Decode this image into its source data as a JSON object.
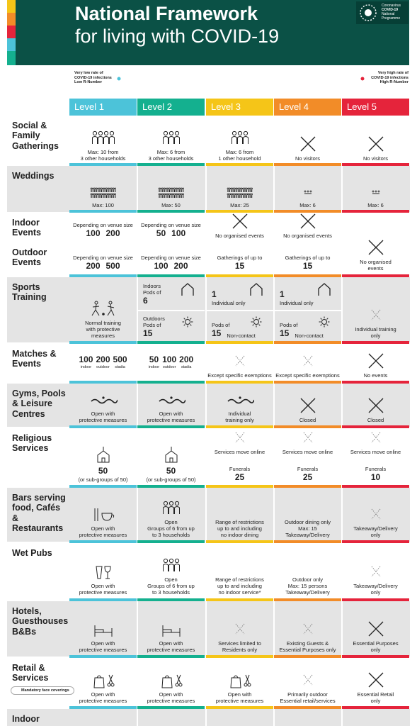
{
  "header": {
    "title": "National Framework",
    "subtitle": "for living with COVID-19",
    "logo": [
      "Coronavirus",
      "COVID-19",
      "National",
      "Programme"
    ]
  },
  "scale": {
    "low": [
      "Very low rate of",
      "COVID-19 infections",
      "Low R-Number"
    ],
    "high": [
      "Very high rate of",
      "COVID-19 infections",
      "High R-Number"
    ]
  },
  "levels": [
    "Level 1",
    "Level 2",
    "Level 3",
    "Level 4",
    "Level 5"
  ],
  "rows": [
    {
      "label": "Social & Family Gatherings",
      "cells": [
        [
          "Max: 10 from",
          "3 other households"
        ],
        [
          "Max: 6 from",
          "3 other households"
        ],
        [
          "Max: 6 from",
          "1 other household"
        ],
        [
          "No visitors"
        ],
        [
          "No visitors"
        ]
      ]
    },
    {
      "label": "Weddings",
      "cells": [
        [
          "Max: 100"
        ],
        [
          "Max: 50"
        ],
        [
          "Max: 25"
        ],
        [
          "Max: 6"
        ],
        [
          "Max: 6"
        ]
      ]
    },
    {
      "labels": [
        "Indoor Events",
        "Outdoor Events"
      ],
      "cells": [
        {
          "parts": [
            [
              "Depending on venue size",
              [
                "100",
                "200"
              ]
            ],
            [
              "Depending on venue size",
              [
                "200",
                "500"
              ]
            ]
          ]
        },
        {
          "parts": [
            [
              "Depending on venue size",
              [
                "50",
                "100"
              ]
            ],
            [
              "Depending on venue size",
              [
                "100",
                "200"
              ]
            ]
          ]
        },
        {
          "parts": [
            [
              "No organised events"
            ],
            [
              "Gatherings of up to",
              "15"
            ]
          ]
        },
        {
          "parts": [
            [
              "No organised events"
            ],
            [
              "Gatherings of up to",
              "15"
            ]
          ]
        },
        [
          "No organised",
          "events"
        ]
      ]
    },
    {
      "label": "Sports Training",
      "cells": [
        [
          "Normal training",
          "with protective",
          "measures"
        ],
        {
          "parts": [
            [
              "Indoors",
              "Pods of",
              "6"
            ],
            [
              "Outdoors",
              "Pods of",
              "15"
            ]
          ]
        },
        {
          "parts": [
            [
              "1",
              "Individual only"
            ],
            [
              "Pods of",
              [
                "15",
                "Non-contact"
              ]
            ]
          ]
        },
        {
          "parts": [
            [
              "1",
              "Individual only"
            ],
            [
              "Pods of",
              [
                "15",
                "Non-contact"
              ]
            ]
          ]
        },
        [
          "Individual training",
          "only"
        ]
      ]
    },
    {
      "label": "Matches & Events",
      "cells": [
        {
          "columns": [
            [
              "100",
              "indoor"
            ],
            [
              "200",
              "outdoor"
            ],
            [
              "500",
              "stadia"
            ]
          ]
        },
        {
          "columns": [
            [
              "50",
              "indoor"
            ],
            [
              "100",
              "outdoor"
            ],
            [
              "200",
              "stadia"
            ]
          ]
        },
        [
          "Except specific exemptions"
        ],
        [
          "Except specific exemptions"
        ],
        [
          "No events"
        ]
      ]
    },
    {
      "label": "Gyms, Pools & Leisure Centres",
      "cells": [
        [
          "Open with",
          "protective measures"
        ],
        [
          "Open with",
          "protective measures"
        ],
        [
          "Individual",
          "training only"
        ],
        [
          "Closed"
        ],
        [
          "Closed"
        ]
      ]
    },
    {
      "label": "Religious Services",
      "cells": [
        [
          "50",
          "(or sub-groups of 50)"
        ],
        [
          "50",
          "(or sub-groups of 50)"
        ],
        {
          "parts": [
            [
              "Services move online"
            ],
            [
              "Funerals",
              "25"
            ]
          ]
        },
        {
          "parts": [
            [
              "Services move online"
            ],
            [
              "Funerals",
              "25"
            ]
          ]
        },
        {
          "parts": [
            [
              "Services move online"
            ],
            [
              "Funerals",
              "10"
            ]
          ]
        }
      ]
    },
    {
      "label": "Bars serving food, Cafés & Restaurants",
      "cells": [
        [
          "Open with",
          "protective measures"
        ],
        [
          "Open",
          "Groups of 6 from up",
          "to 3 households"
        ],
        [
          "Range of restrictions",
          "up to and including",
          "no indoor dining"
        ],
        [
          "Outdoor dining only",
          "Max: 15",
          "Takeaway/Delivery"
        ],
        [
          "Takeaway/Delivery",
          "only"
        ]
      ]
    },
    {
      "label": "Wet Pubs",
      "cells": [
        [
          "Open with",
          "protective measures"
        ],
        [
          "Open",
          "Groups of 6 from up",
          "to 3 households"
        ],
        [
          "Range of restrictions",
          "up to and including",
          "no indoor service*"
        ],
        [
          "Outdoor only",
          "Max: 15 persons",
          "Takeaway/Delivery"
        ],
        [
          "Takeaway/Delivery",
          "only"
        ]
      ]
    },
    {
      "label": "Hotels, Guesthouses B&Bs",
      "cells": [
        [
          "Open with",
          "protective measures"
        ],
        [
          "Open with",
          "protective measures"
        ],
        [
          "Services limited to",
          "Residents only"
        ],
        [
          "Existing Guests &",
          "Essential Purposes only"
        ],
        [
          "Essential Purposes",
          "only"
        ]
      ]
    },
    {
      "label": "Retail & Services",
      "note": "Mandatory face coverings",
      "cells": [
        [
          "Open with",
          "protective measures"
        ],
        [
          "Open with",
          "protective measures"
        ],
        [
          "Open with",
          "protective measures"
        ],
        [
          "Primarily outdoor",
          "Essential retail/services"
        ],
        [
          "Essential Retail",
          "only"
        ]
      ]
    },
    {
      "label": "Indoor"
    }
  ]
}
